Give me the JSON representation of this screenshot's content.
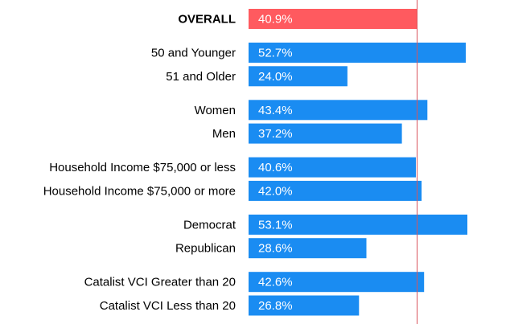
{
  "chart_data": {
    "type": "bar",
    "orientation": "horizontal",
    "x_range": [
      0,
      53.1
    ],
    "grid": false,
    "overall_reference_line": 40.9,
    "colors": {
      "overall": "#ff5a5f",
      "group": "#1a8cf2",
      "reference_line": "#d9535c"
    },
    "rows": [
      {
        "label": "OVERALL",
        "value": 40.9,
        "value_label": "40.9%",
        "highlight": true,
        "group": 0
      },
      {
        "label": "50 and Younger",
        "value": 52.7,
        "value_label": "52.7%",
        "highlight": false,
        "group": 1
      },
      {
        "label": "51 and Older",
        "value": 24.0,
        "value_label": "24.0%",
        "highlight": false,
        "group": 1
      },
      {
        "label": "Women",
        "value": 43.4,
        "value_label": "43.4%",
        "highlight": false,
        "group": 2
      },
      {
        "label": "Men",
        "value": 37.2,
        "value_label": "37.2%",
        "highlight": false,
        "group": 2
      },
      {
        "label": "Household Income $75,000 or less",
        "value": 40.6,
        "value_label": "40.6%",
        "highlight": false,
        "group": 3
      },
      {
        "label": "Household Income $75,000 or more",
        "value": 42.0,
        "value_label": "42.0%",
        "highlight": false,
        "group": 3
      },
      {
        "label": "Democrat",
        "value": 53.1,
        "value_label": "53.1%",
        "highlight": false,
        "group": 4
      },
      {
        "label": "Republican",
        "value": 28.6,
        "value_label": "28.6%",
        "highlight": false,
        "group": 4
      },
      {
        "label": "Catalist VCI Greater than 20",
        "value": 42.6,
        "value_label": "42.6%",
        "highlight": false,
        "group": 5
      },
      {
        "label": "Catalist VCI Less than 20",
        "value": 26.8,
        "value_label": "26.8%",
        "highlight": false,
        "group": 5
      }
    ]
  }
}
